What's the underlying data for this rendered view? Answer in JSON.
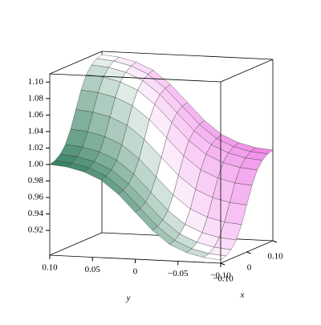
{
  "chart_data": {
    "type": "surface",
    "x_label": "x",
    "y_label": "y",
    "x": [
      -0.1,
      -0.08,
      -0.06,
      -0.04,
      -0.02,
      0,
      0.02,
      0.04,
      0.06,
      0.08,
      0.1
    ],
    "y": [
      -0.1,
      -0.08,
      -0.06,
      -0.04,
      -0.02,
      0,
      0.02,
      0.04,
      0.06,
      0.08,
      0.1
    ],
    "z": [
      [
        0.894,
        0.896,
        0.901,
        0.91,
        0.926,
        0.947,
        0.968,
        0.984,
        0.993,
        0.998,
        1.0
      ],
      [
        0.896,
        0.898,
        0.903,
        0.912,
        0.928,
        0.949,
        0.97,
        0.986,
        0.995,
        1.0,
        1.002
      ],
      [
        0.901,
        0.903,
        0.908,
        0.917,
        0.933,
        0.954,
        0.975,
        0.991,
        1.0,
        1.005,
        1.007
      ],
      [
        0.91,
        0.912,
        0.917,
        0.926,
        0.942,
        0.963,
        0.984,
        1.0,
        1.009,
        1.014,
        1.016
      ],
      [
        0.926,
        0.928,
        0.933,
        0.942,
        0.958,
        0.979,
        1.0,
        1.016,
        1.025,
        1.03,
        1.032
      ],
      [
        0.947,
        0.949,
        0.954,
        0.963,
        0.979,
        1.0,
        1.021,
        1.037,
        1.046,
        1.051,
        1.053
      ],
      [
        0.968,
        0.97,
        0.975,
        0.984,
        1.0,
        1.021,
        1.042,
        1.058,
        1.067,
        1.072,
        1.074
      ],
      [
        0.984,
        0.986,
        0.991,
        1.0,
        1.016,
        1.037,
        1.058,
        1.074,
        1.083,
        1.088,
        1.09
      ],
      [
        0.993,
        0.995,
        1.0,
        1.009,
        1.025,
        1.046,
        1.067,
        1.083,
        1.092,
        1.097,
        1.099
      ],
      [
        0.998,
        1.0,
        1.005,
        1.014,
        1.03,
        1.051,
        1.072,
        1.088,
        1.097,
        1.102,
        1.104
      ],
      [
        1.0,
        1.002,
        1.007,
        1.016,
        1.032,
        1.053,
        1.074,
        1.09,
        1.099,
        1.104,
        1.106
      ]
    ],
    "xlim": [
      -0.1,
      0.1
    ],
    "ylim": [
      -0.1,
      0.1
    ],
    "zlim": [
      0.89,
      1.11
    ],
    "xticks": [
      {
        "value": 0.1,
        "label": "0.10"
      },
      0,
      {
        "value": -0.1,
        "label": "−0.10"
      }
    ],
    "yticks": [
      {
        "value": 0.1,
        "label": "0.10"
      },
      0.05,
      0,
      {
        "value": -0.05,
        "label": "−0.05"
      },
      {
        "value": -0.1,
        "label": "−0.10"
      }
    ],
    "zticks": [
      0.92,
      0.94,
      0.96,
      0.98,
      {
        "value": 1,
        "label": "1.00"
      },
      1.02,
      1.04,
      1.06,
      1.08,
      {
        "value": 1.1,
        "label": "1.10"
      }
    ],
    "colormap": [
      "#2f7d5c",
      "#ffffff",
      "#ee7fe6"
    ]
  }
}
